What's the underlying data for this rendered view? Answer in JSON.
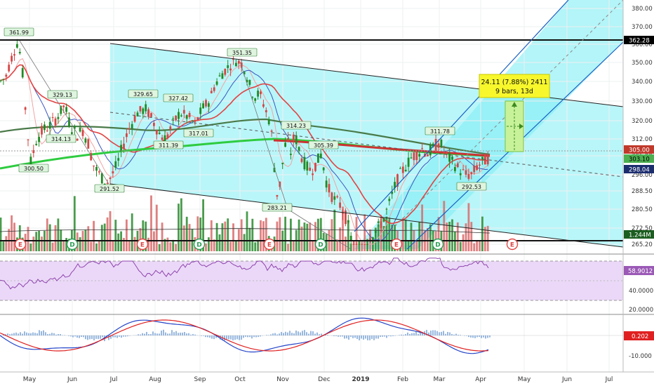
{
  "chart_data": {
    "type": "candlestick",
    "price_axis": {
      "ticks": [
        "380.00",
        "370.00",
        "360.00",
        "350.00",
        "340.00",
        "330.00",
        "320.00",
        "312.00",
        "305.00",
        "296.00",
        "288.50",
        "280.50",
        "272.50",
        "265.20"
      ]
    },
    "price_badges": [
      {
        "label": "362.28",
        "color": "#000000",
        "text_color": "#ffffff"
      },
      {
        "label": "305.00",
        "color": "#c0392b",
        "text_color": "#ffffff"
      },
      {
        "label": "303.10",
        "color": "#4caf50",
        "text_color": "#000000"
      },
      {
        "label": "298.04",
        "color": "#1c2d6e",
        "text_color": "#ffffff"
      },
      {
        "label": "1.244M",
        "color": "#1b5e20",
        "text_color": "#ffffff"
      }
    ],
    "x_axis_labels": [
      "May",
      "Jun",
      "Jul",
      "Aug",
      "Sep",
      "Oct",
      "Nov",
      "Dec",
      "2019",
      "Feb",
      "Mar",
      "Apr",
      "May",
      "Jun",
      "Jul"
    ],
    "high_low_labels": [
      "361.99",
      "300.50",
      "329.13",
      "314.13",
      "291.52",
      "329.65",
      "311.39",
      "327.42",
      "317.01",
      "351.35",
      "283.21",
      "314.23",
      "305.39",
      "311.78",
      "292.53"
    ],
    "event_markers": [
      "E",
      "D",
      "E",
      "D",
      "E",
      "D",
      "E",
      "D",
      "E"
    ],
    "measure_box": {
      "line1": "24.11 (7.88%) 2411",
      "line2": "9 bars, 13d"
    },
    "rsi": {
      "value_badge": "58.9012",
      "ticks": [
        "40.0000",
        "20.0000"
      ]
    },
    "macd": {
      "value_badge": "0.202",
      "ticks": [
        "-10.000"
      ]
    },
    "colors": {
      "up": "#1f8b24",
      "down": "#d64545",
      "channel_fill": "#80eef4",
      "rsi_band": "#ebd8f8",
      "rsi_line": "#8e44ad",
      "macd_line": "#2545c8",
      "signal_line": "#e02020"
    }
  }
}
